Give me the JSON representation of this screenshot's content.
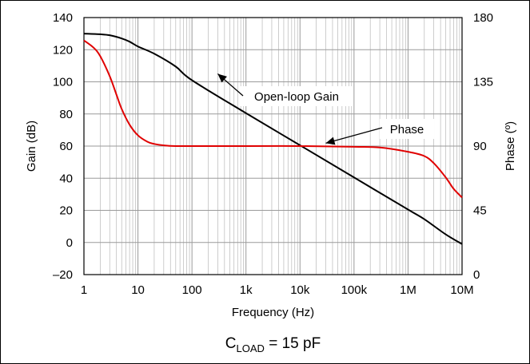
{
  "chart_data": {
    "type": "line",
    "x_scale": "log",
    "xlabel": "Frequency (Hz)",
    "ylabel_left": "Gain (dB)",
    "ylabel_right": "Phase (º)",
    "caption": {
      "main": "C",
      "sub": "LOAD",
      "rest": " = 15 pF"
    },
    "xlim": [
      1,
      10000000
    ],
    "ylim_left": [
      -20,
      140
    ],
    "ylim_right": [
      0,
      180
    ],
    "x_ticks": [
      {
        "value": 1,
        "label": "1"
      },
      {
        "value": 10,
        "label": "10"
      },
      {
        "value": 100,
        "label": "100"
      },
      {
        "value": 1000,
        "label": "1k"
      },
      {
        "value": 10000,
        "label": "10k"
      },
      {
        "value": 100000,
        "label": "100k"
      },
      {
        "value": 1000000,
        "label": "1M"
      },
      {
        "value": 10000000,
        "label": "10M"
      }
    ],
    "y_ticks_left": [
      -20,
      0,
      20,
      40,
      60,
      80,
      100,
      120,
      140
    ],
    "y_ticks_left_labels": [
      "–20",
      "0",
      "20",
      "40",
      "60",
      "80",
      "100",
      "120",
      "140"
    ],
    "y_ticks_right": [
      0,
      45,
      90,
      135,
      180
    ],
    "grid": true,
    "series": [
      {
        "name": "Open-loop Gain",
        "axis": "left",
        "color": "#000000",
        "x": [
          1,
          2,
          3,
          5,
          7,
          10,
          20,
          50,
          100,
          1000,
          10000,
          100000,
          1000000,
          2000000,
          5000000,
          10000000
        ],
        "y": [
          130,
          129.6,
          129,
          127,
          125,
          122,
          117.5,
          109.5,
          101,
          80.5,
          60.5,
          40.5,
          20.5,
          14.5,
          5,
          -1
        ]
      },
      {
        "name": "Phase",
        "axis": "right",
        "color": "#e00000",
        "x": [
          1,
          1.5,
          2,
          3,
          4,
          5,
          7,
          10,
          15,
          20,
          30,
          50,
          100,
          300,
          1000,
          10000,
          100000,
          300000,
          1000000,
          2000000,
          3000000,
          5000000,
          7000000,
          10000000
        ],
        "y": [
          164,
          159,
          153,
          139,
          126,
          116,
          105,
          97.5,
          93,
          91.5,
          90.5,
          90,
          90,
          90,
          90,
          90,
          89.5,
          89,
          86,
          83,
          78,
          68,
          60,
          54
        ]
      }
    ],
    "annotations": [
      {
        "text": "Open-loop Gain",
        "target_x": 300,
        "target_axis": "left",
        "target_y": 105
      },
      {
        "text": "Phase",
        "target_x": 30000,
        "target_axis": "right",
        "target_y": 92
      }
    ]
  }
}
